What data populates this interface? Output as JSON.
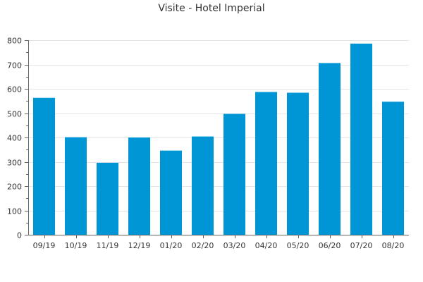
{
  "chart_data": {
    "type": "bar",
    "title": "Visite - Hotel Imperial",
    "xlabel": "",
    "ylabel": "",
    "categories": [
      "09/19",
      "10/19",
      "11/19",
      "12/19",
      "01/20",
      "02/20",
      "03/20",
      "04/20",
      "05/20",
      "06/20",
      "07/20",
      "08/20"
    ],
    "values": [
      563,
      401,
      296,
      400,
      346,
      404,
      497,
      587,
      584,
      706,
      786,
      547
    ],
    "ylim": [
      0,
      800
    ],
    "yticks": [
      0,
      100,
      200,
      300,
      400,
      500,
      600,
      700,
      800
    ],
    "grid": true,
    "legend": "none",
    "bar_color": "#0096d6",
    "grid_color": "#e5e5e5",
    "axis_color": "#666666"
  }
}
